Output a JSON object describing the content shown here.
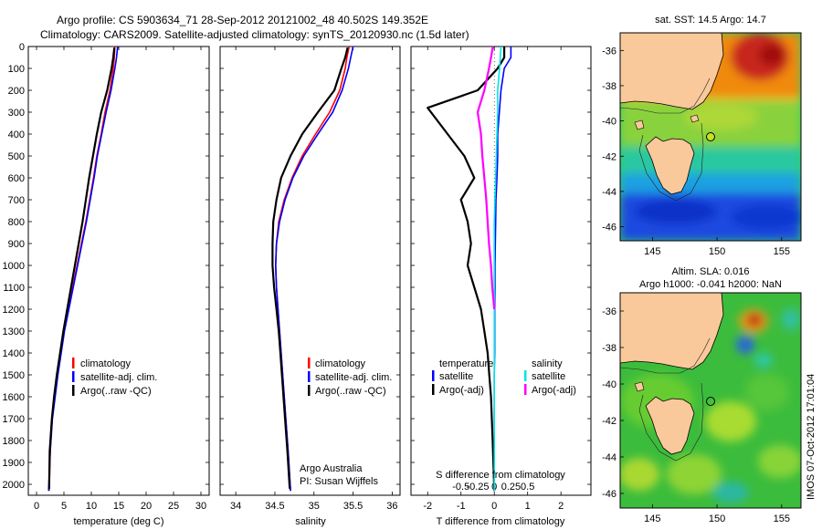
{
  "header": {
    "line1": "Argo profile: CS 5903634_71 28-Sep-2012 20121002_48 40.502S 149.352E",
    "line2": "Climatology: CARS2009. Satellite-adjusted climatology: synTS_20120930.nc (1.5d later)"
  },
  "depth_ticks": [
    0,
    100,
    200,
    300,
    400,
    500,
    600,
    700,
    800,
    900,
    1000,
    1100,
    1200,
    1300,
    1400,
    1500,
    1600,
    1700,
    1800,
    1900,
    2000
  ],
  "colors": {
    "climatology": "#ff0000",
    "satellite": "#0000ff",
    "argo": "#000000",
    "sat_salinity": "#00e5e5",
    "argo_salinity_adj": "#ff00ff",
    "land": "#f9c99b"
  },
  "chart_data": [
    {
      "type": "line",
      "id": "temperature",
      "xlabel": "temperature (deg C)",
      "xticks": [
        0,
        5,
        10,
        15,
        20,
        25,
        30
      ],
      "xlim": [
        -1.5,
        31.5
      ],
      "ylim": [
        0,
        2050
      ],
      "y_reversed": true,
      "legend": [
        "climatology",
        "satellite-adj. clim.",
        "Argo(..raw -QC)"
      ],
      "legend_position": "lower-center",
      "series": [
        {
          "name": "climatology",
          "color": "#ff0000",
          "x": [
            14.3,
            14.2,
            14.0,
            13.4,
            12.5,
            11.8,
            11.0,
            10.4,
            9.7,
            9.0,
            8.2,
            7.4,
            6.6,
            5.8,
            5.0,
            4.4,
            3.8,
            3.3,
            2.8,
            2.5,
            2.3
          ],
          "y": [
            0,
            50,
            100,
            200,
            300,
            400,
            500,
            600,
            700,
            800,
            900,
            1000,
            1100,
            1200,
            1300,
            1400,
            1500,
            1600,
            1700,
            1850,
            2030
          ]
        },
        {
          "name": "satellite-adj. clim.",
          "color": "#0000ff",
          "x": [
            14.8,
            14.6,
            14.3,
            13.6,
            12.7,
            11.9,
            11.1,
            10.5,
            9.8,
            9.1,
            8.3,
            7.5,
            6.7,
            5.9,
            5.1,
            4.5,
            3.9,
            3.4,
            2.9,
            2.5,
            2.2
          ],
          "y": [
            0,
            50,
            100,
            200,
            300,
            400,
            500,
            600,
            700,
            800,
            900,
            1000,
            1100,
            1200,
            1300,
            1400,
            1500,
            1600,
            1700,
            1850,
            2030
          ]
        },
        {
          "name": "Argo(..raw -QC)",
          "color": "#000000",
          "x": [
            14.2,
            14.0,
            13.7,
            12.9,
            11.8,
            11.0,
            10.3,
            9.6,
            9.0,
            8.4,
            7.7,
            7.0,
            6.3,
            5.6,
            4.9,
            4.3,
            3.7,
            3.2,
            2.8,
            2.4,
            2.3
          ],
          "y": [
            5,
            50,
            100,
            200,
            300,
            400,
            500,
            600,
            700,
            800,
            900,
            1000,
            1100,
            1200,
            1300,
            1400,
            1500,
            1600,
            1700,
            1850,
            2020
          ]
        }
      ]
    },
    {
      "type": "line",
      "id": "salinity",
      "xlabel": "salinity",
      "xticks": [
        34,
        34.5,
        35,
        35.5,
        36
      ],
      "xticklabels": [
        "34",
        "34.5",
        "35",
        "35.5",
        "36"
      ],
      "xlim": [
        33.8,
        36.1
      ],
      "ylim": [
        0,
        2050
      ],
      "y_reversed": true,
      "legend": [
        "climatology",
        "satellite-adj. clim.",
        "Argo(..raw -QC)"
      ],
      "legend_position": "lower-center",
      "annotation": [
        "Argo Australia",
        "PI: Susan Wijffels"
      ],
      "series": [
        {
          "name": "climatology",
          "color": "#ff0000",
          "x": [
            35.45,
            35.42,
            35.4,
            35.33,
            35.2,
            35.02,
            34.85,
            34.72,
            34.62,
            34.55,
            34.52,
            34.51,
            34.52,
            34.54,
            34.56,
            34.58,
            34.6,
            34.62,
            34.64,
            34.67,
            34.7
          ],
          "y": [
            0,
            50,
            100,
            200,
            300,
            400,
            500,
            600,
            700,
            800,
            900,
            1000,
            1100,
            1200,
            1300,
            1400,
            1500,
            1600,
            1700,
            1850,
            2030
          ]
        },
        {
          "name": "satellite-adj. clim.",
          "color": "#0000ff",
          "x": [
            35.5,
            35.47,
            35.44,
            35.36,
            35.24,
            35.05,
            34.87,
            34.73,
            34.63,
            34.56,
            34.52,
            34.51,
            34.52,
            34.54,
            34.56,
            34.58,
            34.6,
            34.62,
            34.64,
            34.67,
            34.7
          ],
          "y": [
            0,
            50,
            100,
            200,
            300,
            400,
            500,
            600,
            700,
            800,
            900,
            1000,
            1100,
            1200,
            1300,
            1400,
            1500,
            1600,
            1700,
            1850,
            2030
          ]
        },
        {
          "name": "Argo(..raw -QC)",
          "color": "#000000",
          "x": [
            35.43,
            35.4,
            35.35,
            35.26,
            35.05,
            34.85,
            34.7,
            34.58,
            34.52,
            34.48,
            34.47,
            34.47,
            34.49,
            34.52,
            34.55,
            34.57,
            34.59,
            34.61,
            34.63,
            34.66,
            34.69
          ],
          "y": [
            5,
            50,
            100,
            200,
            300,
            400,
            500,
            600,
            700,
            800,
            900,
            1000,
            1100,
            1200,
            1300,
            1400,
            1500,
            1600,
            1700,
            1850,
            2020
          ]
        }
      ]
    },
    {
      "type": "line",
      "id": "difference",
      "xlabel": "T difference from climatology",
      "xticks": [
        -2,
        -1,
        0,
        1,
        2
      ],
      "xlim": [
        -2.5,
        2.9
      ],
      "upper_xlabel": "S difference from climatology",
      "upper_xticks": [
        -0.5,
        -0.25,
        0,
        0.25,
        0.5
      ],
      "upper_xticklabels": [
        "-0.5",
        "-0.25",
        "0",
        "0.25",
        "0.5"
      ],
      "ylim": [
        0,
        2050
      ],
      "y_reversed": true,
      "legend_temperature": {
        "title": "temperature",
        "items": [
          "satellite",
          "Argo(-adj)"
        ]
      },
      "legend_salinity": {
        "title": "salinity",
        "items": [
          "satellite",
          "Argo(-adj)"
        ]
      },
      "series": [
        {
          "name": "temperature satellite",
          "color": "#0000ff",
          "x": [
            0.5,
            0.5,
            0.3,
            0.2,
            0.15,
            0.1,
            0.1,
            0.08,
            0.05,
            0.04,
            0.03,
            0.02,
            0.02,
            0.01,
            0.01,
            0.01,
            0.0,
            0.0,
            0.0,
            0.0
          ],
          "y": [
            0,
            50,
            100,
            200,
            300,
            400,
            500,
            600,
            700,
            800,
            900,
            1000,
            1100,
            1200,
            1300,
            1400,
            1500,
            1600,
            1800,
            2030
          ]
        },
        {
          "name": "temperature Argo(-adj)",
          "color": "#000000",
          "x": [
            0.3,
            0.3,
            0.1,
            -0.5,
            -2.0,
            -1.4,
            -0.9,
            -0.6,
            -1.0,
            -0.8,
            -0.7,
            -0.8,
            -0.6,
            -0.4,
            -0.3,
            -0.2,
            -0.15,
            -0.1,
            -0.05,
            0.0
          ],
          "y": [
            0,
            50,
            100,
            200,
            280,
            400,
            500,
            600,
            700,
            800,
            900,
            1000,
            1100,
            1200,
            1300,
            1400,
            1500,
            1600,
            1800,
            2030
          ]
        },
        {
          "name": "salinity satellite",
          "color": "#00e5e5",
          "x": [
            0.1,
            0.08,
            0.05,
            0.05,
            0.04,
            0.03,
            0.02,
            0.01,
            0.0,
            0.0,
            0.0,
            0.0
          ],
          "y": [
            0,
            100,
            200,
            300,
            400,
            500,
            600,
            700,
            800,
            1000,
            1500,
            2030
          ]
        },
        {
          "name": "salinity Argo(-adj)",
          "color": "#ff00ff",
          "x": [
            -0.02,
            -0.05,
            -0.08,
            -0.15,
            -0.25,
            -0.2,
            -0.18,
            -0.15,
            -0.12,
            -0.1,
            -0.08,
            -0.05,
            -0.03,
            0.0
          ],
          "y": [
            0,
            50,
            100,
            200,
            300,
            400,
            500,
            600,
            700,
            800,
            900,
            1000,
            1100,
            1200
          ]
        }
      ]
    },
    {
      "type": "heatmap",
      "id": "sst_map",
      "title": "sat. SST: 14.5 Argo: 14.7",
      "xticks": [
        145,
        150,
        155
      ],
      "yticks": [
        -36,
        -38,
        -40,
        -42,
        -44,
        -46
      ],
      "xlim": [
        142.5,
        156.5
      ],
      "ylim": [
        -46.8,
        -35
      ],
      "float_position": {
        "lon": 149.352,
        "lat": -40.502
      }
    },
    {
      "type": "heatmap",
      "id": "sla_map",
      "title": [
        "Altim. SLA: 0.016",
        "Argo h1000: -0.041 h2000: NaN"
      ],
      "xticks": [
        145,
        150,
        155
      ],
      "yticks": [
        -36,
        -38,
        -40,
        -42,
        -44,
        -46
      ],
      "xlim": [
        142.5,
        156.5
      ],
      "ylim": [
        -46.8,
        -35
      ],
      "float_position": {
        "lon": 149.352,
        "lat": -40.502
      }
    }
  ],
  "footer_stamp": "IMOS 07-Oct-2012 17:01:04"
}
